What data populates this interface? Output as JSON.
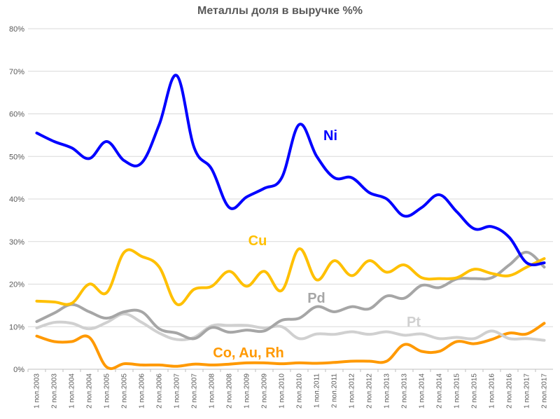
{
  "chart_data": {
    "type": "line",
    "title": "Металлы доля в выручке %%",
    "ylim": [
      0,
      80
    ],
    "yticks": [
      "0%",
      "10%",
      "20%",
      "30%",
      "40%",
      "50%",
      "60%",
      "70%",
      "80%"
    ],
    "grid": true,
    "categories": [
      "1 пол.2003",
      "2 пол.2003",
      "1 пол.2004",
      "2 пол.2004",
      "1 пол.2005",
      "2 пол.2005",
      "1 пол.2006",
      "2 пол.2006",
      "1 пол.2007",
      "2 пол.2007",
      "1 пол.2008",
      "2 пол.2008",
      "1 пол.2009",
      "2 пол.2009",
      "1 пол.2010",
      "2 пол.2010",
      "1 пол.2011",
      "2 пол.2011",
      "1 пол.2012",
      "2 пол.2012",
      "1 пол.2013",
      "2 пол.2013",
      "1 пол.2014",
      "2 пол.2014",
      "1 пол.2015",
      "2 пол.2015",
      "1 пол.2016",
      "2 пол.2016",
      "1 пол.2017",
      "2 пол.2017"
    ],
    "series": [
      {
        "name": "Ni",
        "color": "#0000ff",
        "values": [
          55.5,
          53.5,
          52,
          49.5,
          53.5,
          49,
          48.5,
          57.5,
          69,
          52,
          47,
          38,
          40.5,
          42.5,
          45,
          57.5,
          50,
          45,
          45,
          41.5,
          40,
          36,
          38,
          41,
          37,
          33,
          33.5,
          31,
          25,
          25
        ]
      },
      {
        "name": "Cu",
        "color": "#ffc000",
        "values": [
          16,
          15.8,
          15.5,
          20,
          18,
          27.5,
          26.5,
          24,
          15.3,
          18.8,
          19.5,
          23,
          19.5,
          23,
          18.5,
          28.3,
          21,
          25.5,
          22,
          25.5,
          22.8,
          24.5,
          21.5,
          21.3,
          21.5,
          23.5,
          22.5,
          22,
          24,
          26
        ]
      },
      {
        "name": "Pd",
        "color": "#a6a6a6",
        "values": [
          11.2,
          13.2,
          15.2,
          13.5,
          12,
          13.5,
          13.5,
          9.5,
          8.5,
          7.2,
          9.8,
          8.7,
          9.2,
          9,
          11.5,
          12,
          14.7,
          13.5,
          14.7,
          14.2,
          17.2,
          16.7,
          19.7,
          19.2,
          21.2,
          21.3,
          21.5,
          24.5,
          27.5,
          24
        ]
      },
      {
        "name": "Pt",
        "color": "#d0d0d0",
        "values": [
          9.7,
          11,
          10.8,
          9.5,
          11,
          13,
          11,
          8.5,
          7,
          7.5,
          10.2,
          10.3,
          10.3,
          9.7,
          10,
          7.2,
          8.3,
          8.2,
          8.8,
          8.2,
          8.8,
          8,
          8.3,
          7.2,
          7.5,
          7.2,
          9,
          7.2,
          7.2,
          6.8
        ]
      },
      {
        "name": "Co, Au, Rh",
        "color": "#ff9900",
        "values": [
          7.8,
          6.5,
          6.5,
          7.5,
          0.5,
          1.3,
          1,
          1,
          0.7,
          1.2,
          1,
          1.2,
          1.5,
          1.5,
          1.3,
          1.5,
          1.4,
          1.6,
          1.9,
          1.9,
          1.9,
          5.8,
          4.2,
          4.2,
          6.5,
          6,
          7,
          8.5,
          8.3,
          10.8
        ]
      }
    ]
  }
}
